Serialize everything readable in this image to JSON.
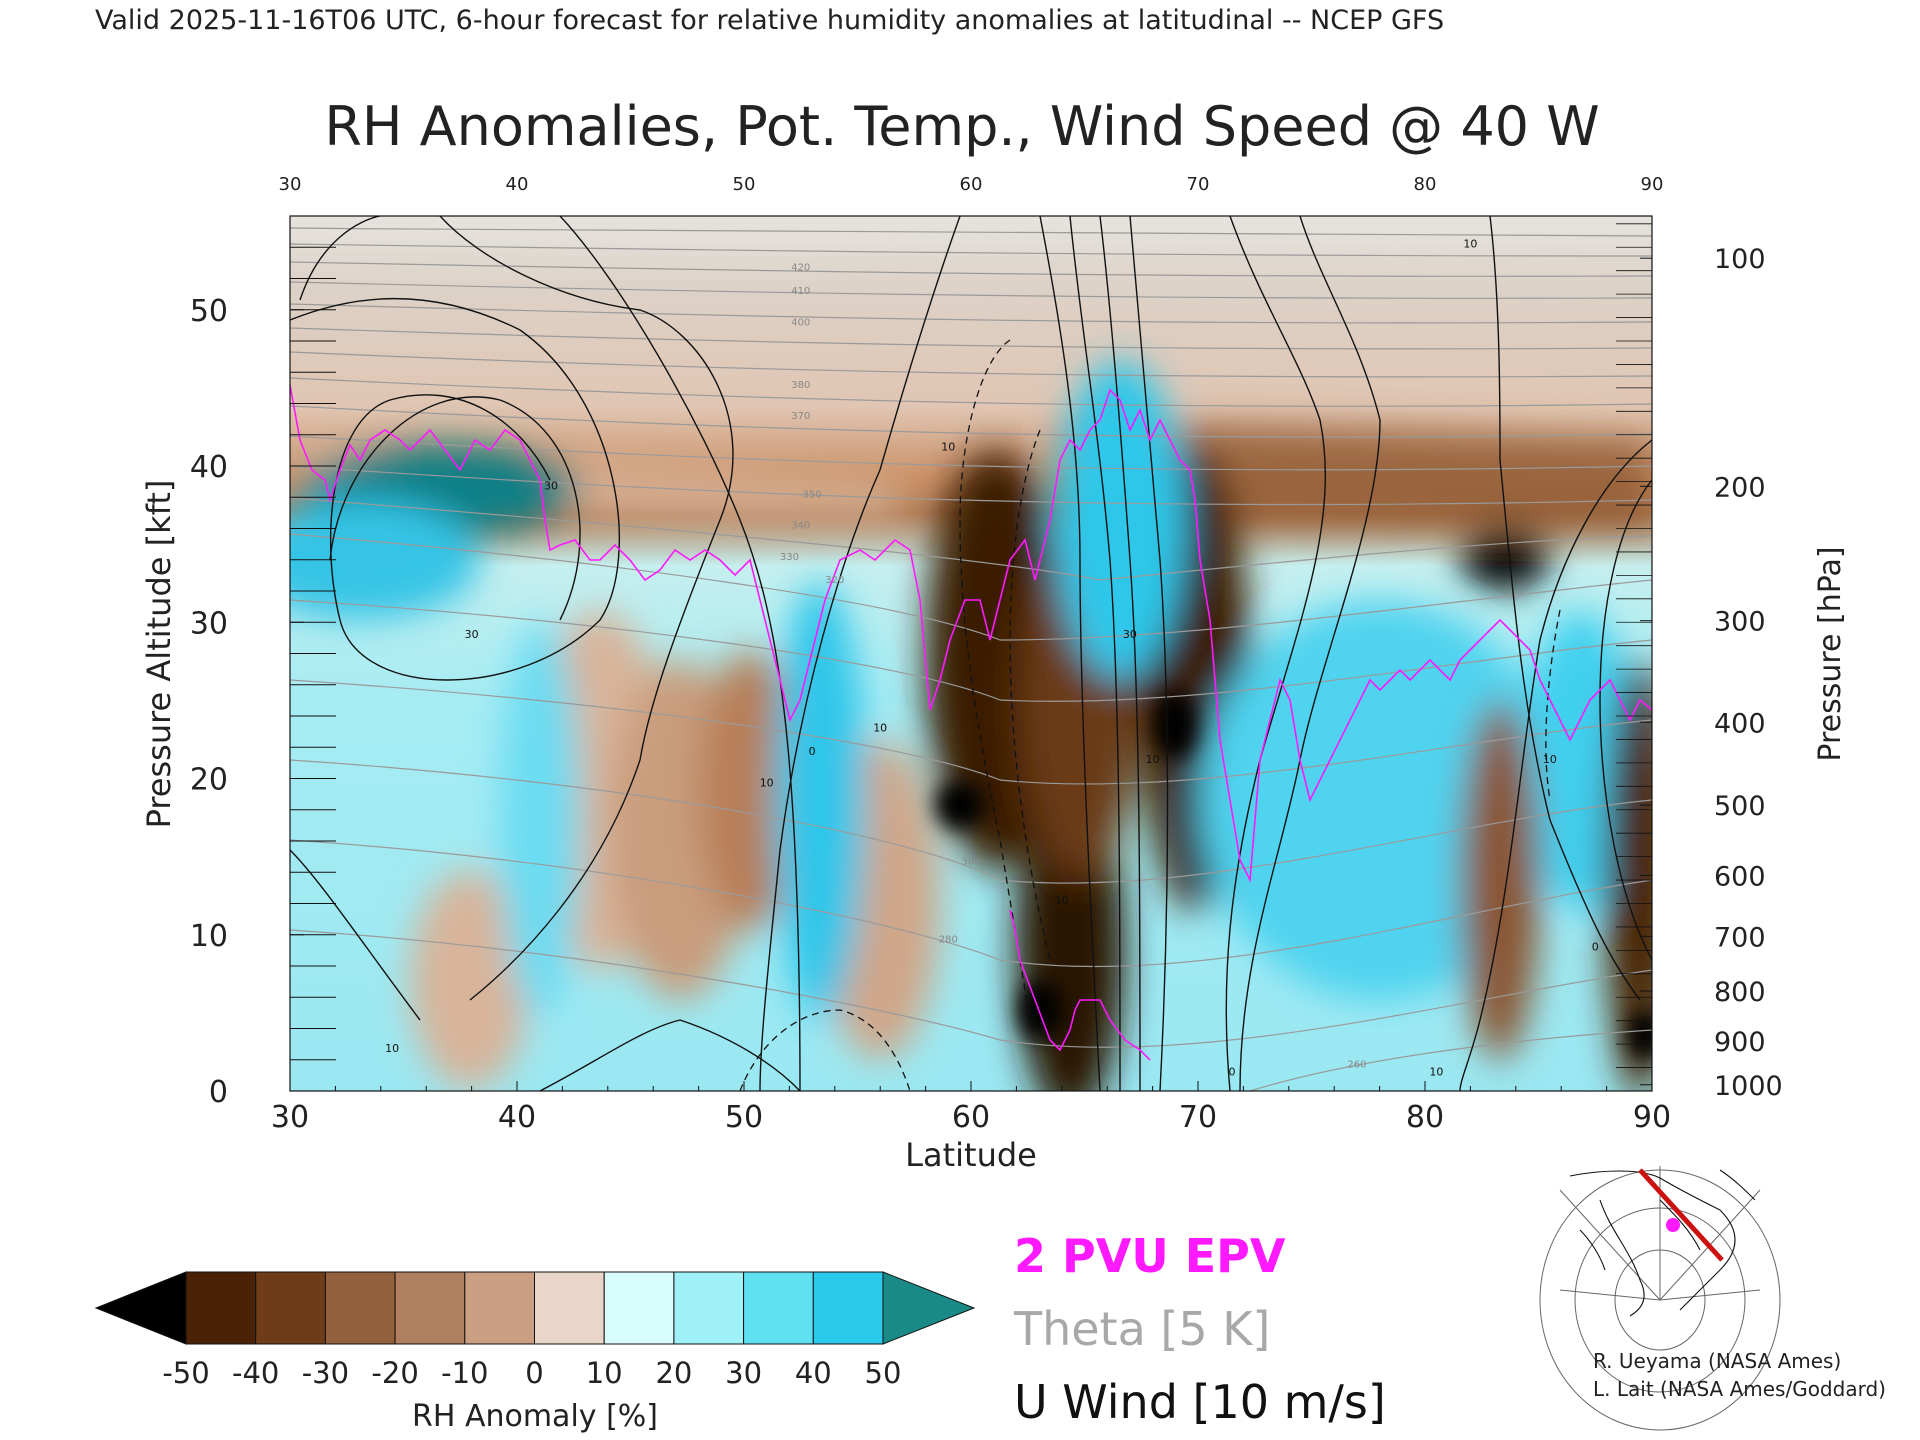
{
  "header": {
    "valid_line": "Valid 2025-11-16T06 UTC, 6-hour forecast for relative humidity anomalies at latitudinal -- NCEP GFS"
  },
  "chart_data": {
    "type": "heatmap",
    "title": "RH Anomalies, Pot. Temp., Wind Speed @ 40 W",
    "xlabel": "Latitude",
    "ylabel_left": "Pressure Altitude [kft]",
    "ylabel_right": "Pressure [hPa]",
    "xlim": [
      30,
      90
    ],
    "ylim": [
      0,
      56
    ],
    "x_ticks": [
      "30",
      "40",
      "50",
      "60",
      "70",
      "80",
      "90"
    ],
    "x_ticks_top": [
      "30",
      "40",
      "50",
      "60",
      "70",
      "80",
      "90"
    ],
    "y_ticks": [
      "0",
      "10",
      "20",
      "30",
      "40",
      "50"
    ],
    "y_tick_values": [
      0,
      10,
      20,
      30,
      40,
      50
    ],
    "pressure_ticks": [
      {
        "label": "100",
        "kft": 53.3
      },
      {
        "label": "200",
        "kft": 38.7
      },
      {
        "label": "300",
        "kft": 30.1
      },
      {
        "label": "400",
        "kft": 23.6
      },
      {
        "label": "500",
        "kft": 18.3
      },
      {
        "label": "600",
        "kft": 13.8
      },
      {
        "label": "700",
        "kft": 9.9
      },
      {
        "label": "800",
        "kft": 6.4
      },
      {
        "label": "900",
        "kft": 3.2
      },
      {
        "label": "1000",
        "kft": 0.4
      }
    ],
    "colorbar": {
      "label": "RH Anomaly [%]",
      "ticks": [
        "-50",
        "-40",
        "-30",
        "-20",
        "-10",
        "0",
        "10",
        "20",
        "30",
        "40",
        "50"
      ],
      "colors": [
        "#4a2206",
        "#6e3c18",
        "#92603a",
        "#b0805e",
        "#ca9f83",
        "#e9d6c8",
        "#d8fbfb",
        "#9df1f7",
        "#5fe1f2",
        "#2bc9eb",
        "#0596c4"
      ],
      "under_color": "#000000",
      "over_color": "#1a8a86"
    },
    "legend": [
      "2 PVU EPV",
      "Theta [5 K]",
      "U Wind [10 m/s]"
    ],
    "legend_colors": {
      "pvu": "#ff19ff",
      "theta": "#a8a8a8",
      "u": "#111111"
    },
    "theta_labels": [
      {
        "lat": 52.5,
        "kft": 52.5,
        "text": "420"
      },
      {
        "lat": 52.5,
        "kft": 51.0,
        "text": "410"
      },
      {
        "lat": 52.5,
        "kft": 49.0,
        "text": "400"
      },
      {
        "lat": 52.5,
        "kft": 45.0,
        "text": "380"
      },
      {
        "lat": 52.5,
        "kft": 43.0,
        "text": "370"
      },
      {
        "lat": 53.0,
        "kft": 38.0,
        "text": "350"
      },
      {
        "lat": 52.5,
        "kft": 36.0,
        "text": "340"
      },
      {
        "lat": 52.0,
        "kft": 34.0,
        "text": "330"
      },
      {
        "lat": 54.0,
        "kft": 32.5,
        "text": "320"
      },
      {
        "lat": 60.0,
        "kft": 14.5,
        "text": "300"
      },
      {
        "lat": 59.0,
        "kft": 9.5,
        "text": "280"
      },
      {
        "lat": 77.0,
        "kft": 1.5,
        "text": "260"
      }
    ],
    "u_wind_labels": [
      {
        "lat": 41.5,
        "kft": 38.5,
        "text": "30"
      },
      {
        "lat": 38.0,
        "kft": 29.0,
        "text": "30"
      },
      {
        "lat": 59.0,
        "kft": 41.0,
        "text": "10"
      },
      {
        "lat": 67.0,
        "kft": 29.0,
        "text": "30"
      },
      {
        "lat": 82.0,
        "kft": 54.0,
        "text": "10"
      },
      {
        "lat": 53.0,
        "kft": 21.5,
        "text": "0"
      },
      {
        "lat": 51.0,
        "kft": 19.5,
        "text": "10"
      },
      {
        "lat": 56.0,
        "kft": 23.0,
        "text": "10"
      },
      {
        "lat": 64.0,
        "kft": 12.0,
        "text": "10"
      },
      {
        "lat": 68.0,
        "kft": 21.0,
        "text": "10"
      },
      {
        "lat": 85.5,
        "kft": 21.0,
        "text": "10"
      },
      {
        "lat": 71.5,
        "kft": 1.0,
        "text": "0"
      },
      {
        "lat": 80.5,
        "kft": 1.0,
        "text": "10"
      },
      {
        "lat": 87.5,
        "kft": 9.0,
        "text": "0"
      },
      {
        "lat": 34.5,
        "kft": 2.5,
        "text": "10"
      }
    ]
  },
  "map_inset": {
    "section_color": "#cc1111",
    "marker_color": "#ff19ff"
  },
  "credits": [
    "R. Ueyama (NASA Ames)",
    "L. Lait (NASA Ames/Goddard)"
  ]
}
